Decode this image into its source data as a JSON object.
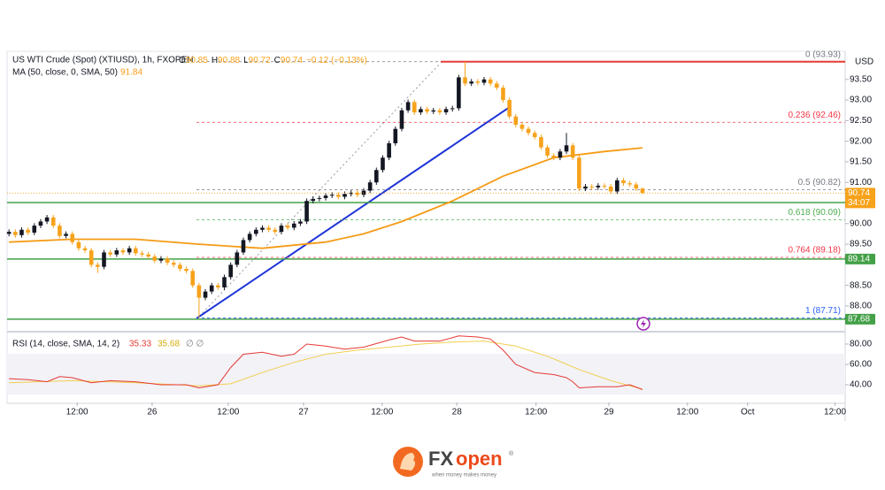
{
  "chart_data": {
    "type": "candlestick",
    "title": "US WTI Crude (Spot) (XTIUSD), 1h, FXOPEN",
    "ohlc_labels": [
      "O",
      "H",
      "L",
      "C"
    ],
    "change": "−0.12 (−0.13%)",
    "currency": "USD",
    "countdown": "34:07",
    "up_color": "#131722",
    "down_color": "#f7a21b",
    "xlim": [
      -0.3,
      132
    ],
    "ylim": [
      87.44,
      94.14
    ],
    "xticks": [
      {
        "value": 10.75,
        "label": "12:00"
      },
      {
        "value": 22.6,
        "label": "26"
      },
      {
        "value": 34.6,
        "label": "12:00"
      },
      {
        "value": 46.5,
        "label": "27"
      },
      {
        "value": 58.9,
        "label": "12:00"
      },
      {
        "value": 70.7,
        "label": "28"
      },
      {
        "value": 83.2,
        "label": "12:00"
      },
      {
        "value": 94.7,
        "label": "29"
      },
      {
        "value": 107.1,
        "label": "12:00"
      },
      {
        "value": 116.6,
        "label": "Oct"
      },
      {
        "value": 130.4,
        "label": "12:00"
      }
    ],
    "yticks": [
      {
        "value": 93.5,
        "label": "93.50"
      },
      {
        "value": 93.0,
        "label": "93.00"
      },
      {
        "value": 92.5,
        "label": "92.50"
      },
      {
        "value": 92.0,
        "label": "92.00"
      },
      {
        "value": 91.5,
        "label": "91.50"
      },
      {
        "value": 91.0,
        "label": "91.00"
      },
      {
        "value": 90.0,
        "label": "90.00"
      },
      {
        "value": 89.5,
        "label": "89.50"
      },
      {
        "value": 88.5,
        "label": "88.50"
      },
      {
        "value": 88.0,
        "label": "88.00"
      }
    ],
    "candles": [
      [
        89.75,
        89.86,
        89.69,
        89.8
      ],
      [
        89.8,
        89.86,
        89.66,
        89.72
      ],
      [
        89.72,
        89.91,
        89.66,
        89.85
      ],
      [
        89.85,
        89.91,
        89.72,
        89.78
      ],
      [
        89.78,
        90.01,
        89.72,
        89.95
      ],
      [
        89.95,
        90.11,
        89.89,
        90.05
      ],
      [
        90.05,
        90.21,
        89.99,
        90.15
      ],
      [
        90.15,
        90.21,
        89.89,
        89.95
      ],
      [
        89.95,
        90.01,
        89.64,
        89.7
      ],
      [
        89.7,
        89.81,
        89.64,
        89.75
      ],
      [
        89.75,
        89.81,
        89.49,
        89.55
      ],
      [
        89.55,
        89.61,
        89.34,
        89.4
      ],
      [
        89.4,
        89.46,
        89.29,
        89.35
      ],
      [
        89.35,
        89.41,
        88.94,
        89.0
      ],
      [
        89.0,
        89.06,
        88.8,
        88.95
      ],
      [
        88.95,
        89.36,
        88.89,
        89.3
      ],
      [
        89.3,
        89.36,
        89.19,
        89.25
      ],
      [
        89.25,
        89.41,
        89.19,
        89.35
      ],
      [
        89.35,
        89.41,
        89.24,
        89.3
      ],
      [
        89.3,
        89.46,
        89.24,
        89.4
      ],
      [
        89.4,
        89.46,
        89.22,
        89.28
      ],
      [
        89.28,
        89.34,
        89.19,
        89.25
      ],
      [
        89.25,
        89.31,
        89.14,
        89.2
      ],
      [
        89.2,
        89.26,
        89.04,
        89.1
      ],
      [
        89.1,
        89.21,
        89.04,
        89.15
      ],
      [
        89.15,
        89.21,
        88.99,
        89.05
      ],
      [
        89.05,
        89.11,
        88.94,
        89.0
      ],
      [
        89.0,
        89.06,
        88.84,
        88.9
      ],
      [
        88.9,
        88.96,
        88.79,
        88.85
      ],
      [
        88.85,
        88.91,
        88.44,
        88.5
      ],
      [
        88.5,
        88.56,
        87.71,
        88.2
      ],
      [
        88.2,
        88.41,
        88.14,
        88.35
      ],
      [
        88.35,
        88.56,
        88.29,
        88.5
      ],
      [
        88.5,
        88.56,
        88.39,
        88.45
      ],
      [
        88.45,
        88.76,
        88.39,
        88.7
      ],
      [
        88.7,
        89.06,
        88.64,
        89.0
      ],
      [
        89.0,
        89.36,
        88.94,
        89.3
      ],
      [
        89.3,
        89.66,
        89.24,
        89.6
      ],
      [
        89.6,
        89.81,
        89.54,
        89.75
      ],
      [
        89.75,
        89.91,
        89.69,
        89.85
      ],
      [
        89.85,
        89.96,
        89.79,
        89.9
      ],
      [
        89.9,
        89.96,
        89.79,
        89.85
      ],
      [
        89.85,
        89.91,
        89.74,
        89.8
      ],
      [
        89.8,
        90.01,
        89.74,
        89.95
      ],
      [
        89.95,
        90.01,
        89.84,
        89.9
      ],
      [
        89.9,
        90.06,
        89.84,
        90.0
      ],
      [
        90.0,
        90.11,
        89.94,
        90.05
      ],
      [
        90.05,
        90.61,
        89.99,
        90.55
      ],
      [
        90.55,
        90.66,
        90.49,
        90.6
      ],
      [
        90.6,
        90.68,
        90.54,
        90.62
      ],
      [
        90.62,
        90.74,
        90.56,
        90.68
      ],
      [
        90.68,
        90.76,
        90.62,
        90.7
      ],
      [
        90.7,
        90.76,
        90.59,
        90.65
      ],
      [
        90.65,
        90.78,
        90.59,
        90.72
      ],
      [
        90.72,
        90.81,
        90.66,
        90.75
      ],
      [
        90.75,
        90.81,
        90.64,
        90.7
      ],
      [
        90.7,
        90.86,
        90.64,
        90.8
      ],
      [
        90.8,
        91.06,
        90.74,
        91.0
      ],
      [
        91.0,
        91.36,
        90.94,
        91.3
      ],
      [
        91.3,
        91.66,
        91.24,
        91.6
      ],
      [
        91.6,
        92.01,
        91.54,
        91.95
      ],
      [
        91.95,
        92.36,
        91.89,
        92.3
      ],
      [
        92.3,
        92.81,
        92.24,
        92.75
      ],
      [
        92.75,
        93.01,
        92.69,
        92.95
      ],
      [
        92.95,
        93.01,
        92.64,
        92.7
      ],
      [
        92.7,
        92.84,
        92.64,
        92.78
      ],
      [
        92.78,
        92.84,
        92.66,
        92.72
      ],
      [
        92.72,
        92.81,
        92.66,
        92.75
      ],
      [
        92.75,
        92.81,
        92.64,
        92.7
      ],
      [
        92.7,
        92.84,
        92.64,
        92.78
      ],
      [
        92.78,
        92.86,
        92.72,
        92.8
      ],
      [
        92.8,
        93.61,
        92.74,
        93.55
      ],
      [
        93.55,
        93.93,
        93.34,
        93.4
      ],
      [
        93.4,
        93.51,
        93.34,
        93.45
      ],
      [
        93.45,
        93.51,
        93.36,
        93.42
      ],
      [
        93.42,
        93.56,
        93.36,
        93.5
      ],
      [
        93.5,
        93.56,
        93.34,
        93.4
      ],
      [
        93.4,
        93.46,
        93.24,
        93.3
      ],
      [
        93.3,
        93.36,
        92.94,
        93.0
      ],
      [
        93.0,
        93.06,
        92.54,
        92.6
      ],
      [
        92.6,
        92.66,
        92.34,
        92.4
      ],
      [
        92.4,
        92.46,
        92.24,
        92.3
      ],
      [
        92.3,
        92.36,
        92.14,
        92.2
      ],
      [
        92.2,
        92.26,
        92.04,
        92.1
      ],
      [
        92.1,
        92.16,
        91.79,
        91.85
      ],
      [
        91.85,
        91.91,
        91.59,
        91.65
      ],
      [
        91.65,
        91.71,
        91.54,
        91.6
      ],
      [
        91.6,
        91.81,
        91.54,
        91.75
      ],
      [
        91.75,
        92.2,
        91.69,
        91.9
      ],
      [
        91.9,
        91.96,
        91.54,
        91.6
      ],
      [
        91.6,
        91.66,
        90.79,
        90.85
      ],
      [
        90.85,
        90.96,
        90.79,
        90.9
      ],
      [
        90.9,
        90.96,
        90.82,
        90.88
      ],
      [
        90.88,
        90.98,
        90.82,
        90.92
      ],
      [
        90.92,
        90.98,
        90.84,
        90.9
      ],
      [
        90.9,
        90.96,
        90.72,
        90.78
      ],
      [
        90.78,
        91.11,
        90.72,
        91.05
      ],
      [
        91.05,
        91.11,
        90.92,
        90.98
      ],
      [
        90.98,
        91.04,
        90.89,
        90.95
      ],
      [
        90.95,
        91.01,
        90.79,
        90.85
      ],
      [
        90.85,
        90.88,
        90.72,
        90.74
      ]
    ],
    "ma": {
      "name": "MA (50, close, 0, SMA, 50)",
      "color": "#f59b16",
      "x": [
        0,
        10,
        20,
        30,
        40,
        50,
        56,
        62,
        70,
        78,
        86,
        94,
        100
      ],
      "values": [
        89.55,
        89.62,
        89.62,
        89.5,
        89.4,
        89.55,
        89.75,
        90.05,
        90.55,
        91.15,
        91.6,
        91.75,
        91.84
      ]
    },
    "fib": [
      {
        "value": 93.93,
        "label": "0 (93.93)",
        "color": "#787b86"
      },
      {
        "value": 92.46,
        "label": "0.236 (92.46)",
        "color": "#f23645"
      },
      {
        "value": 90.82,
        "label": "0.5 (90.82)",
        "color": "#787b86"
      },
      {
        "value": 90.09,
        "label": "0.618 (90.09)",
        "color": "#4caf50"
      },
      {
        "value": 89.18,
        "label": "0.764 (89.18)",
        "color": "#f23645"
      },
      {
        "value": 87.71,
        "label": "1 (87.71)",
        "color": "#2962ff"
      }
    ],
    "resistance": {
      "value": 93.93,
      "color": "#e53935"
    },
    "levels": {
      "color": "#43a047",
      "values": [
        90.51,
        89.14,
        87.68
      ]
    },
    "rsi": {
      "name": "RSI (14, close, SMA, 14, 2)",
      "color": "#e53935",
      "na": "∅ ∅",
      "ylim": [
        22.6,
        89.6
      ],
      "yticks": [
        {
          "value": 80,
          "label": "80.00"
        },
        {
          "value": 60,
          "label": "60.00"
        },
        {
          "value": 40,
          "label": "40.00"
        }
      ],
      "x": [
        0,
        3,
        6,
        8,
        10,
        13,
        16,
        20,
        24,
        28,
        30,
        33,
        35,
        37,
        40,
        43,
        45,
        47,
        50,
        53,
        56,
        60,
        62,
        64,
        68,
        71,
        74,
        76,
        78,
        80,
        83,
        86,
        88,
        89,
        90,
        93,
        96,
        98,
        100
      ],
      "values": [
        46,
        45,
        43,
        48,
        47,
        42,
        44,
        43,
        40,
        40,
        37,
        40,
        57,
        70,
        72,
        68,
        70,
        80,
        78,
        75,
        77,
        84,
        87,
        83,
        83,
        88,
        87,
        85,
        74,
        60,
        52,
        50,
        47,
        43,
        37,
        38,
        38,
        40,
        35.33
      ],
      "ma": {
        "color": "#f2cf4f",
        "x": [
          0,
          10,
          20,
          30,
          35,
          40,
          45,
          50,
          55,
          60,
          65,
          70,
          75,
          80,
          85,
          90,
          95,
          100
        ],
        "values": [
          42,
          44,
          42,
          39,
          41,
          52,
          62,
          70,
          74,
          77,
          80,
          82,
          83,
          78,
          68,
          55,
          44,
          35.68
        ]
      }
    },
    "brand": {
      "name_a": "FX",
      "name_b": "open",
      "mark": "®",
      "tagline": "when money makes money"
    }
  }
}
